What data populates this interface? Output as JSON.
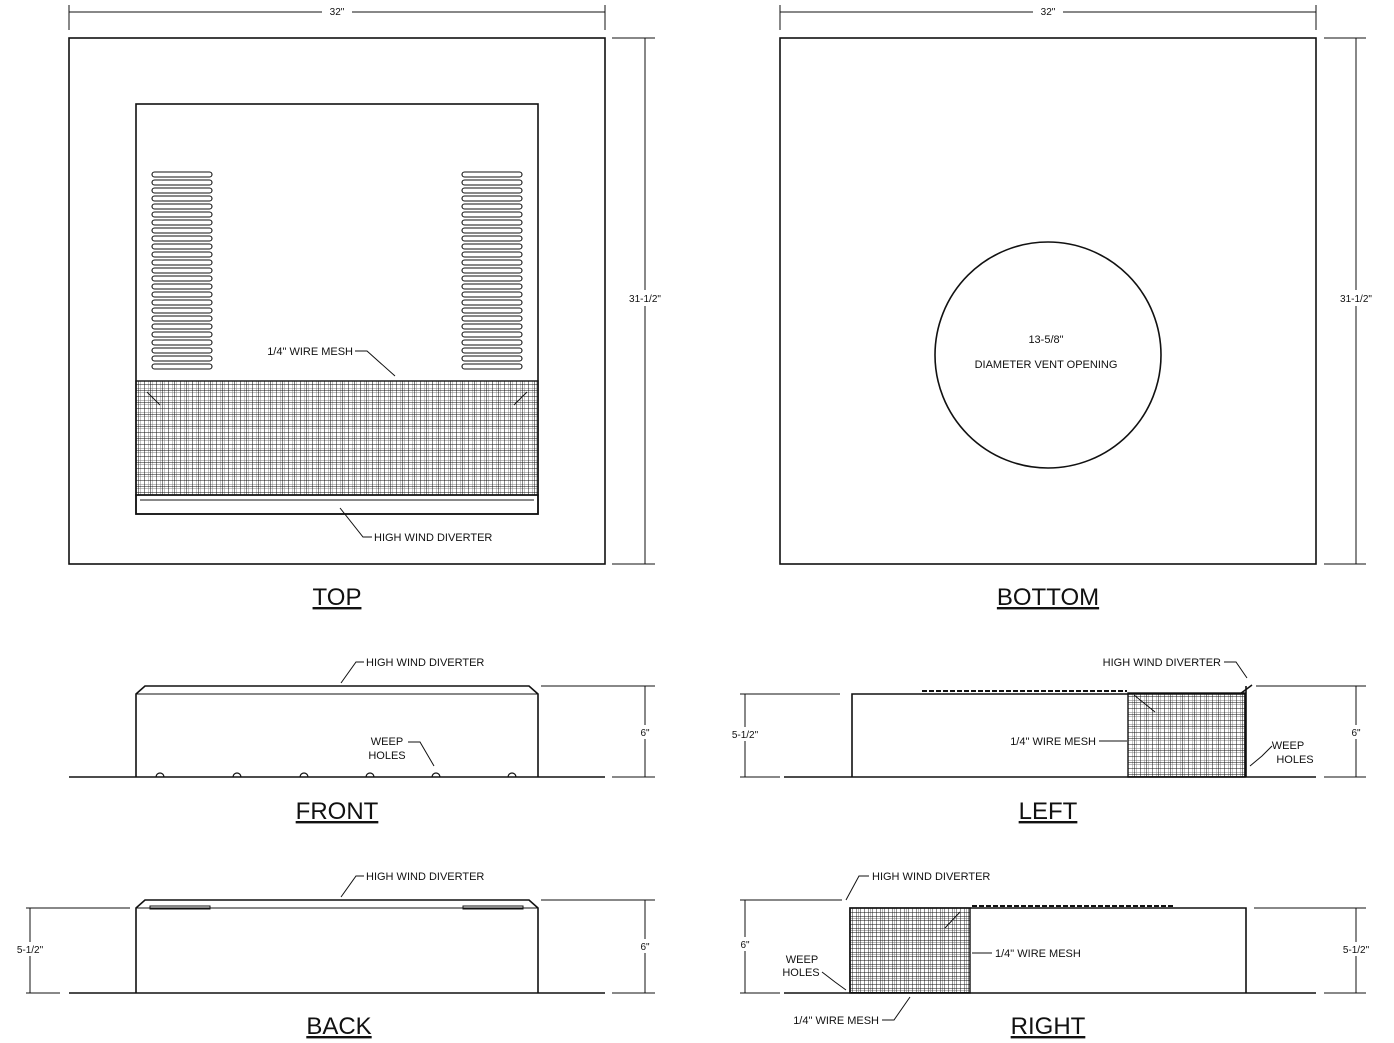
{
  "views": {
    "top": "TOP",
    "bottom": "BOTTOM",
    "front": "FRONT",
    "left": "LEFT",
    "back": "BACK",
    "right": "RIGHT"
  },
  "dimensions": {
    "width": "32\"",
    "depth": "31-1/2\"",
    "height_tall": "6\"",
    "height_short": "5-1/2\""
  },
  "labels": {
    "wire_mesh": "1/4\" WIRE MESH",
    "high_wind_diverter": "HIGH WIND DIVERTER",
    "weep": "WEEP",
    "holes": "HOLES",
    "vent_size": "13-5/8\"",
    "vent_desc": "DIAMETER VENT OPENING"
  }
}
